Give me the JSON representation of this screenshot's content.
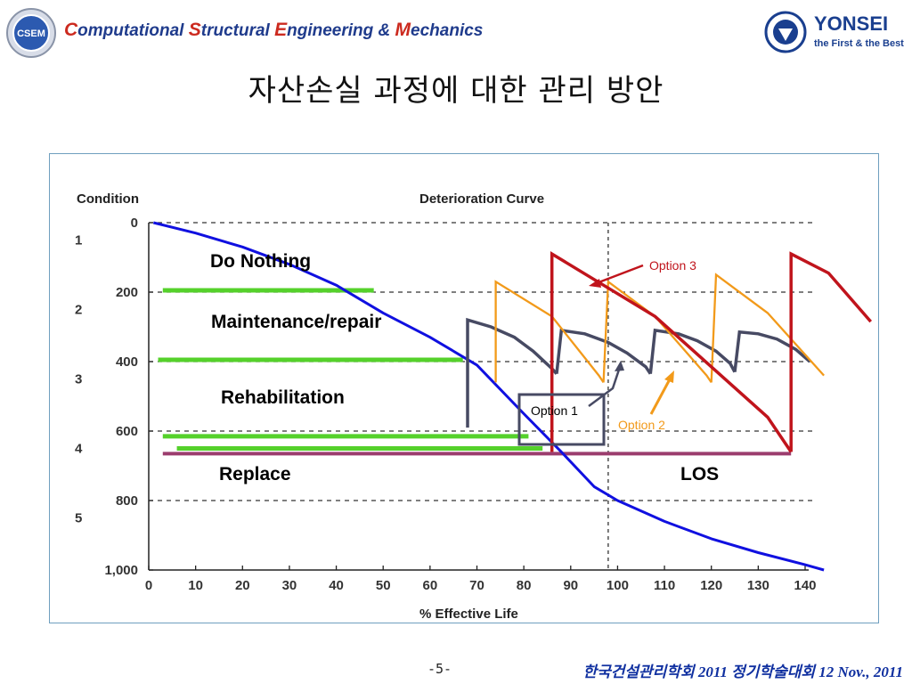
{
  "header": {
    "org_parts": [
      {
        "cap": "C",
        "rest": "omputational "
      },
      {
        "cap": "S",
        "rest": "tructural "
      },
      {
        "cap": "E",
        "rest": "ngineering & "
      },
      {
        "cap": "M",
        "rest": "echanics"
      }
    ],
    "logo_left_text": "CSEM",
    "logo_right_text": "YONSEI",
    "logo_right_subtext": "the First & the Best"
  },
  "title": "자산손실 과정에 대한 관리 방안",
  "footer": {
    "page": "-5-",
    "event": "한국건설관리학회 2011 정기학술대회 12 Nov., 2011"
  },
  "colors": {
    "curve": "#1010e0",
    "threshold": "#55d12b",
    "los": "#9b3d6e",
    "option1": "#474a63",
    "option2": "#f29a1a",
    "option3": "#c0141c",
    "grid": "#333333",
    "org_blue": "#1f3b8c",
    "org_red": "#cc2a1f"
  },
  "chart_data": {
    "type": "line",
    "title": "Deterioration Curve",
    "xlabel": "% Effective Life",
    "ylabel": "Condition",
    "xlim": [
      0,
      140
    ],
    "ylim": [
      0,
      1000
    ],
    "y_inverted": true,
    "x_ticks": [
      0,
      10,
      20,
      30,
      40,
      50,
      60,
      70,
      80,
      90,
      100,
      110,
      120,
      130,
      140
    ],
    "y_ticks": [
      0,
      200,
      400,
      600,
      800,
      1000
    ],
    "y_tick_labels": [
      "0",
      "200",
      "400",
      "600",
      "800",
      "1,000"
    ],
    "condition_levels": [
      {
        "label": "1",
        "y": 50
      },
      {
        "label": "2",
        "y": 250
      },
      {
        "label": "3",
        "y": 450
      },
      {
        "label": "4",
        "y": 650
      },
      {
        "label": "5",
        "y": 850
      }
    ],
    "gridlines": {
      "horizontal": [
        0,
        200,
        400,
        600,
        800
      ],
      "vertical": [
        98
      ]
    },
    "series": [
      {
        "color_key": "curve",
        "x": [
          1,
          10,
          20,
          30,
          40,
          50,
          60,
          70,
          80,
          88,
          95,
          100,
          110,
          120,
          130,
          140,
          144
        ],
        "y": [
          0,
          30,
          70,
          120,
          180,
          260,
          330,
          410,
          550,
          660,
          760,
          800,
          860,
          910,
          950,
          985,
          1000
        ]
      },
      {
        "color_key": "option1",
        "segments": [
          {
            "x": [
              68,
              68,
              73,
              78,
              82,
              86,
              87
            ],
            "y": [
              590,
              280,
              300,
              330,
              370,
              420,
              435
            ]
          },
          {
            "x": [
              87,
              88,
              93,
              98,
              102,
              106,
              107
            ],
            "y": [
              435,
              310,
              320,
              345,
              375,
              415,
              435
            ]
          },
          {
            "x": [
              107,
              108,
              113,
              117,
              121,
              124,
              125
            ],
            "y": [
              435,
              310,
              320,
              340,
              370,
              405,
              430
            ]
          },
          {
            "x": [
              125,
              126,
              130,
              134,
              138,
              141
            ],
            "y": [
              430,
              315,
              320,
              335,
              365,
              400
            ]
          }
        ]
      },
      {
        "color_key": "option2",
        "segments": [
          {
            "x": [
              74,
              74,
              86,
              96,
              97
            ],
            "y": [
              460,
              170,
              270,
              440,
              460
            ]
          },
          {
            "x": [
              97,
              98,
              108,
              119,
              120
            ],
            "y": [
              460,
              170,
              270,
              440,
              460
            ]
          },
          {
            "x": [
              120,
              121,
              132,
              144
            ],
            "y": [
              460,
              150,
              260,
              440
            ]
          }
        ]
      },
      {
        "color_key": "option3",
        "segments": [
          {
            "x": [
              86,
              86,
              108,
              132,
              137
            ],
            "y": [
              660,
              90,
              270,
              560,
              660
            ]
          },
          {
            "x": [
              137,
              137,
              145,
              154
            ],
            "y": [
              660,
              90,
              145,
              285
            ]
          }
        ]
      }
    ],
    "thresholds": [
      {
        "label": "Do Nothing",
        "x": [
          3,
          48
        ],
        "y": 195
      },
      {
        "label": "Maintenance/repair",
        "x": [
          2,
          67
        ],
        "y": 395
      },
      {
        "label": "Rehabilitation",
        "x": [
          3,
          81
        ],
        "y": 615
      },
      {
        "label": "Rehabilitation",
        "x": [
          6,
          84
        ],
        "y": 650
      }
    ],
    "los_line": {
      "label": "LOS",
      "x": [
        3,
        137
      ],
      "y": 665
    },
    "region_labels": [
      "Do Nothing",
      "Maintenance/repair",
      "Rehabilitation",
      "Replace",
      "LOS"
    ],
    "annotations": [
      {
        "text": "Option 1",
        "color_key": "option1"
      },
      {
        "text": "Option 2",
        "color_key": "option2"
      },
      {
        "text": "Option 3",
        "color_key": "option3"
      }
    ]
  }
}
